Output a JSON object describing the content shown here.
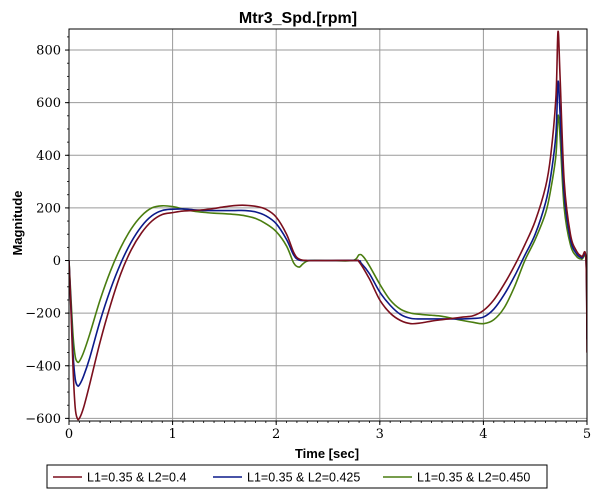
{
  "chart_data": {
    "type": "line",
    "title": "Mtr3_Spd.[rpm]",
    "xlabel": "Time [sec]",
    "ylabel": "Magnitude",
    "xlim": [
      0,
      5
    ],
    "ylim": [
      -610,
      880
    ],
    "xticks": [
      0,
      1,
      2,
      3,
      4,
      5
    ],
    "yticks": [
      -600,
      -400,
      -200,
      0,
      200,
      400,
      600,
      800
    ],
    "xtick_labels": [
      "0",
      "1",
      "2",
      "3",
      "4",
      "5"
    ],
    "ytick_labels": [
      "−600",
      "−400",
      "−200",
      "0",
      "200",
      "400",
      "600",
      "800"
    ],
    "grid": true,
    "legend_position": "bottom",
    "series": [
      {
        "name": "L1=0.35 & L2=0.4",
        "color": "#7b0f1d",
        "points": [
          [
            0,
            0
          ],
          [
            0.02,
            -200
          ],
          [
            0.04,
            -420
          ],
          [
            0.06,
            -560
          ],
          [
            0.08,
            -600
          ],
          [
            0.1,
            -600
          ],
          [
            0.14,
            -560
          ],
          [
            0.2,
            -470
          ],
          [
            0.3,
            -310
          ],
          [
            0.4,
            -170
          ],
          [
            0.5,
            -50
          ],
          [
            0.6,
            40
          ],
          [
            0.7,
            105
          ],
          [
            0.8,
            150
          ],
          [
            0.9,
            175
          ],
          [
            1.0,
            182
          ],
          [
            1.1,
            188
          ],
          [
            1.2,
            190
          ],
          [
            1.3,
            193
          ],
          [
            1.4,
            198
          ],
          [
            1.5,
            204
          ],
          [
            1.6,
            209
          ],
          [
            1.7,
            210
          ],
          [
            1.8,
            206
          ],
          [
            1.9,
            195
          ],
          [
            2.0,
            165
          ],
          [
            2.1,
            100
          ],
          [
            2.17,
            30
          ],
          [
            2.22,
            6
          ],
          [
            2.3,
            0
          ],
          [
            2.5,
            0
          ],
          [
            2.76,
            0
          ],
          [
            2.8,
            -5
          ],
          [
            2.9,
            -70
          ],
          [
            3.0,
            -150
          ],
          [
            3.1,
            -200
          ],
          [
            3.2,
            -228
          ],
          [
            3.3,
            -240
          ],
          [
            3.4,
            -237
          ],
          [
            3.5,
            -230
          ],
          [
            3.6,
            -225
          ],
          [
            3.7,
            -220
          ],
          [
            3.8,
            -215
          ],
          [
            3.9,
            -210
          ],
          [
            4.0,
            -190
          ],
          [
            4.1,
            -150
          ],
          [
            4.2,
            -90
          ],
          [
            4.3,
            -20
          ],
          [
            4.4,
            60
          ],
          [
            4.5,
            150
          ],
          [
            4.6,
            280
          ],
          [
            4.65,
            400
          ],
          [
            4.7,
            620
          ],
          [
            4.72,
            870
          ],
          [
            4.74,
            700
          ],
          [
            4.78,
            300
          ],
          [
            4.84,
            100
          ],
          [
            4.9,
            35
          ],
          [
            4.95,
            15
          ],
          [
            4.99,
            5
          ],
          [
            5.0,
            -350
          ]
        ]
      },
      {
        "name": "L1=0.35 & L2=0.425",
        "color": "#0c1a8a",
        "points": [
          [
            0,
            0
          ],
          [
            0.02,
            -180
          ],
          [
            0.04,
            -360
          ],
          [
            0.06,
            -450
          ],
          [
            0.08,
            -475
          ],
          [
            0.1,
            -473
          ],
          [
            0.14,
            -440
          ],
          [
            0.2,
            -370
          ],
          [
            0.3,
            -230
          ],
          [
            0.4,
            -110
          ],
          [
            0.5,
            -10
          ],
          [
            0.6,
            70
          ],
          [
            0.7,
            130
          ],
          [
            0.8,
            170
          ],
          [
            0.9,
            190
          ],
          [
            1.0,
            195
          ],
          [
            1.1,
            196
          ],
          [
            1.2,
            193
          ],
          [
            1.3,
            190
          ],
          [
            1.4,
            190
          ],
          [
            1.5,
            190
          ],
          [
            1.6,
            190
          ],
          [
            1.7,
            190
          ],
          [
            1.8,
            185
          ],
          [
            1.9,
            170
          ],
          [
            2.0,
            140
          ],
          [
            2.1,
            80
          ],
          [
            2.17,
            20
          ],
          [
            2.22,
            2
          ],
          [
            2.3,
            0
          ],
          [
            2.5,
            0
          ],
          [
            2.78,
            0
          ],
          [
            2.82,
            -10
          ],
          [
            2.9,
            -50
          ],
          [
            3.0,
            -120
          ],
          [
            3.1,
            -170
          ],
          [
            3.2,
            -205
          ],
          [
            3.3,
            -220
          ],
          [
            3.4,
            -222
          ],
          [
            3.5,
            -222
          ],
          [
            3.6,
            -222
          ],
          [
            3.7,
            -222
          ],
          [
            3.8,
            -222
          ],
          [
            3.9,
            -220
          ],
          [
            4.0,
            -215
          ],
          [
            4.1,
            -185
          ],
          [
            4.2,
            -130
          ],
          [
            4.3,
            -60
          ],
          [
            4.4,
            20
          ],
          [
            4.5,
            100
          ],
          [
            4.6,
            220
          ],
          [
            4.65,
            320
          ],
          [
            4.7,
            480
          ],
          [
            4.72,
            680
          ],
          [
            4.74,
            560
          ],
          [
            4.78,
            250
          ],
          [
            4.84,
            80
          ],
          [
            4.9,
            25
          ],
          [
            4.95,
            10
          ],
          [
            4.99,
            3
          ],
          [
            5.0,
            -300
          ]
        ]
      },
      {
        "name": "L1=0.35 & L2=0.450",
        "color": "#4a7d10",
        "points": [
          [
            0,
            0
          ],
          [
            0.02,
            -150
          ],
          [
            0.04,
            -290
          ],
          [
            0.06,
            -365
          ],
          [
            0.08,
            -385
          ],
          [
            0.1,
            -383
          ],
          [
            0.14,
            -350
          ],
          [
            0.2,
            -280
          ],
          [
            0.3,
            -150
          ],
          [
            0.4,
            -40
          ],
          [
            0.5,
            50
          ],
          [
            0.6,
            120
          ],
          [
            0.7,
            170
          ],
          [
            0.8,
            200
          ],
          [
            0.9,
            208
          ],
          [
            1.0,
            205
          ],
          [
            1.1,
            196
          ],
          [
            1.2,
            188
          ],
          [
            1.3,
            183
          ],
          [
            1.4,
            180
          ],
          [
            1.5,
            178
          ],
          [
            1.6,
            175
          ],
          [
            1.7,
            170
          ],
          [
            1.8,
            160
          ],
          [
            1.9,
            140
          ],
          [
            2.0,
            110
          ],
          [
            2.1,
            55
          ],
          [
            2.17,
            -10
          ],
          [
            2.22,
            -25
          ],
          [
            2.26,
            -12
          ],
          [
            2.32,
            0
          ],
          [
            2.5,
            0
          ],
          [
            2.74,
            0
          ],
          [
            2.8,
            22
          ],
          [
            2.84,
            15
          ],
          [
            2.9,
            -20
          ],
          [
            3.0,
            -90
          ],
          [
            3.1,
            -150
          ],
          [
            3.2,
            -185
          ],
          [
            3.3,
            -200
          ],
          [
            3.4,
            -205
          ],
          [
            3.5,
            -208
          ],
          [
            3.6,
            -212
          ],
          [
            3.7,
            -220
          ],
          [
            3.8,
            -228
          ],
          [
            3.9,
            -235
          ],
          [
            4.0,
            -240
          ],
          [
            4.1,
            -225
          ],
          [
            4.2,
            -180
          ],
          [
            4.3,
            -100
          ],
          [
            4.4,
            0
          ],
          [
            4.5,
            80
          ],
          [
            4.6,
            180
          ],
          [
            4.65,
            270
          ],
          [
            4.7,
            400
          ],
          [
            4.72,
            550
          ],
          [
            4.74,
            470
          ],
          [
            4.78,
            200
          ],
          [
            4.84,
            60
          ],
          [
            4.9,
            15
          ],
          [
            4.95,
            5
          ],
          [
            4.99,
            2
          ],
          [
            5.0,
            -250
          ]
        ]
      }
    ]
  }
}
